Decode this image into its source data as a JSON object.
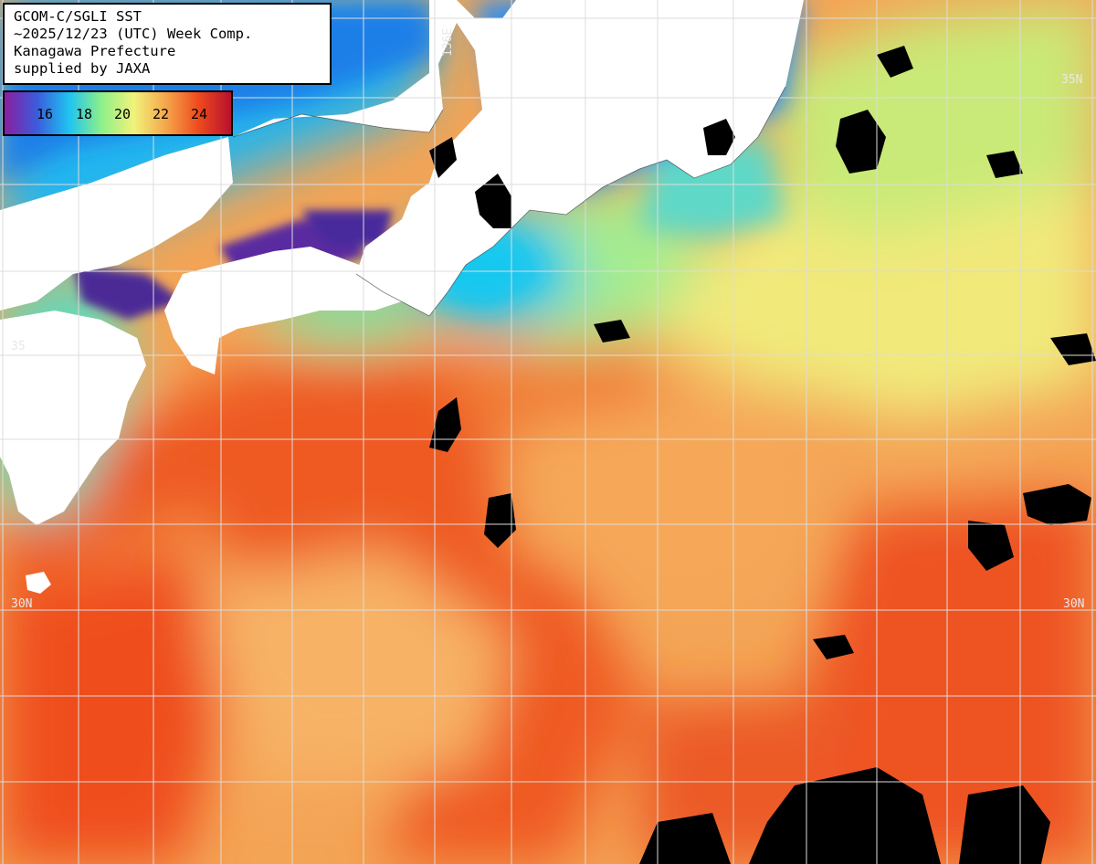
{
  "title": {
    "line1": "GCOM-C/SGLI SST",
    "line2": "~2025/12/23 (UTC) Week Comp.",
    "line3": "Kanagawa Prefecture",
    "line4": "supplied by JAXA"
  },
  "legend": {
    "ticks": [
      "16",
      "18",
      "20",
      "22",
      "24"
    ],
    "colors": [
      "#8a1f9f",
      "#3b5bdc",
      "#1fc4f0",
      "#8ef08a",
      "#f2f27a",
      "#f5a54a",
      "#ee4a1e",
      "#b8102e"
    ]
  },
  "grid_labels": {
    "lon_136": "136E",
    "lat_35_right": "35N",
    "lat_35_left": "35",
    "lat_30_left": "30N",
    "lat_30_right": "30N"
  },
  "colors": {
    "land": "#ffffff",
    "cloud": "#000000",
    "cold_blue": "#1e90ff",
    "cyan": "#22d3ee",
    "green": "#7de88a",
    "yellow": "#f4ef7a",
    "orange": "#f79c4a",
    "red_orange": "#ee5a22",
    "purple": "#5b2a9a",
    "grid": "#dcdcdc"
  }
}
